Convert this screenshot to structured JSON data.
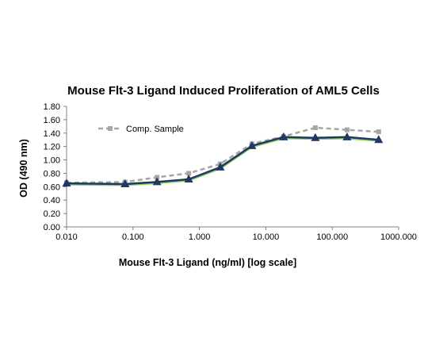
{
  "chart_data": {
    "type": "line",
    "title": "Mouse Flt-3 Ligand Induced Proliferation of AML5 Cells",
    "xlabel": "Mouse Flt-3 Ligand (ng/ml) [log scale]",
    "ylabel": "OD (490 nm)",
    "x_scale": "log",
    "xlim": [
      0.01,
      1000
    ],
    "ylim": [
      0,
      1.8
    ],
    "x_ticks": [
      0.01,
      0.1,
      1,
      10,
      100,
      1000
    ],
    "x_tick_labels": [
      "0.010",
      "0.100",
      "1.000",
      "10.000",
      "100.000",
      "1000.000"
    ],
    "y_ticks": [
      0,
      0.2,
      0.4,
      0.6,
      0.8,
      1.0,
      1.2,
      1.4,
      1.6,
      1.8
    ],
    "y_tick_labels": [
      "0.00",
      "0.20",
      "0.40",
      "0.60",
      "0.80",
      "1.00",
      "1.20",
      "1.40",
      "1.60",
      "1.80"
    ],
    "grid": false,
    "legend_position": "top-left",
    "series": [
      {
        "name": "Comp. Sample",
        "style": "dashed",
        "marker": "square",
        "color": "#a6a6a6",
        "x": [
          0.01,
          0.076,
          0.23,
          0.69,
          2.06,
          6.17,
          18.5,
          55.6,
          167,
          500
        ],
        "values": [
          0.66,
          0.67,
          0.74,
          0.8,
          0.94,
          1.24,
          1.35,
          1.48,
          1.45,
          1.42
        ]
      },
      {
        "style": "solid",
        "marker": "none",
        "color": "#92d050",
        "x": [
          0.01,
          0.076,
          0.23,
          0.69,
          2.06,
          6.17,
          18.5,
          55.6,
          167,
          500
        ],
        "values": [
          0.64,
          0.63,
          0.66,
          0.7,
          0.88,
          1.2,
          1.33,
          1.32,
          1.33,
          1.29
        ]
      },
      {
        "style": "solid",
        "marker": "triangle",
        "color": "#1f3864",
        "x": [
          0.01,
          0.076,
          0.23,
          0.69,
          2.06,
          6.17,
          18.5,
          55.6,
          167,
          500
        ],
        "values": [
          0.65,
          0.64,
          0.67,
          0.71,
          0.89,
          1.21,
          1.34,
          1.33,
          1.34,
          1.3
        ]
      }
    ]
  }
}
